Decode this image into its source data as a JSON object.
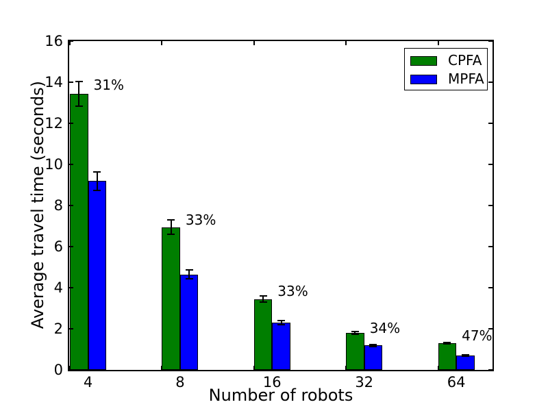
{
  "chart_data": {
    "type": "bar",
    "title": "",
    "xlabel": "Number of robots",
    "ylabel": "Average travel time (seconds)",
    "categories": [
      "4",
      "8",
      "16",
      "32",
      "64"
    ],
    "series": [
      {
        "name": "CPFA",
        "color": "#007e00",
        "values": [
          13.45,
          6.95,
          3.45,
          1.8,
          1.3
        ],
        "errors": [
          0.6,
          0.35,
          0.15,
          0.06,
          0.04
        ]
      },
      {
        "name": "MPFA",
        "color": "#0000ff",
        "values": [
          9.2,
          4.65,
          2.3,
          1.2,
          0.7
        ],
        "errors": [
          0.45,
          0.22,
          0.1,
          0.05,
          0.03
        ]
      }
    ],
    "annotations": [
      {
        "label": "31%",
        "group": 0,
        "y": 13.87
      },
      {
        "label": "33%",
        "group": 1,
        "y": 7.3
      },
      {
        "label": "33%",
        "group": 2,
        "y": 3.83
      },
      {
        "label": "34%",
        "group": 3,
        "y": 2.03
      },
      {
        "label": "47%",
        "group": 4,
        "y": 1.67
      }
    ],
    "ylim": [
      0,
      16
    ],
    "yticks": [
      0,
      2,
      4,
      6,
      8,
      10,
      12,
      14,
      16
    ],
    "grid": false,
    "legend_position": "upper right",
    "bar_edge_color": "#000000",
    "error_bar_color": "#000000"
  }
}
